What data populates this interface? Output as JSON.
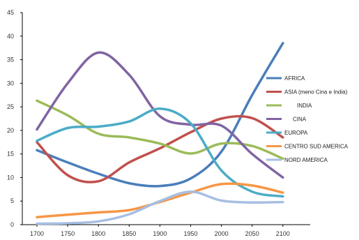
{
  "chart_data": {
    "type": "line",
    "title": "",
    "xlabel": "",
    "ylabel": "",
    "x": [
      1700,
      1750,
      1800,
      1850,
      1900,
      1950,
      2000,
      2050,
      2100
    ],
    "x_tick_labels": [
      "1700",
      "1750",
      "1800",
      "1850",
      "1900",
      "1950",
      "2000",
      "2050",
      "2100"
    ],
    "ylim": [
      0,
      45
    ],
    "y_ticks": [
      0,
      5,
      10,
      15,
      20,
      25,
      30,
      35,
      40,
      45
    ],
    "y_tick_labels": [
      "0",
      "5",
      "10",
      "15",
      "20",
      "25",
      "30",
      "35",
      "40",
      "45"
    ],
    "grid": false,
    "legend_position": "right",
    "series": [
      {
        "name": "AFRICA",
        "color": "#4a7ebb",
        "values": [
          15.8,
          13.2,
          10.8,
          8.8,
          8.2,
          9.8,
          15.5,
          27.5,
          38.5
        ]
      },
      {
        "name": "ASIA (meno Cina e India)",
        "color": "#c0504d",
        "values": [
          17.5,
          10.5,
          9.2,
          13.2,
          16.2,
          19.6,
          22.5,
          22.6,
          18.5
        ]
      },
      {
        "name": "INDIA",
        "color": "#9bbb59",
        "values": [
          26.3,
          23.2,
          19.3,
          18.5,
          17.2,
          15.1,
          17.2,
          16.7,
          14.0
        ]
      },
      {
        "name": "CINA",
        "color": "#8064a2",
        "values": [
          20.2,
          30.0,
          36.5,
          31.8,
          23.0,
          21.2,
          21.0,
          15.0,
          10.0
        ]
      },
      {
        "name": "EUROPA",
        "color": "#4bacc6",
        "values": [
          17.8,
          20.5,
          20.8,
          21.9,
          24.6,
          21.5,
          11.5,
          7.0,
          6.0
        ]
      },
      {
        "name": "CENTRO SUD AMERICA",
        "color": "#f79646",
        "values": [
          1.6,
          2.1,
          2.6,
          3.1,
          4.8,
          6.8,
          8.6,
          8.3,
          6.8
        ]
      },
      {
        "name": "NORD AMERICA",
        "color": "#a6bfe3",
        "values": [
          0.2,
          0.3,
          0.7,
          2.2,
          5.0,
          7.0,
          5.1,
          4.7,
          4.8
        ]
      }
    ]
  }
}
